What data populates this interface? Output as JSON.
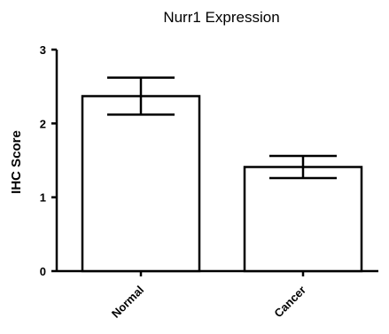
{
  "chart_data": {
    "type": "bar",
    "title": "Nurr1 Expression",
    "xlabel": "",
    "ylabel": "IHC Score",
    "categories": [
      "Normal",
      "Cancer"
    ],
    "values": [
      2.37,
      1.41
    ],
    "errors": [
      0.25,
      0.15
    ],
    "ylim": [
      0,
      3
    ],
    "yticks": [
      "0",
      "1",
      "2",
      "3"
    ],
    "grid": false,
    "legend": "none",
    "bar_fill": "#ffffff",
    "bar_stroke": "#000000"
  }
}
